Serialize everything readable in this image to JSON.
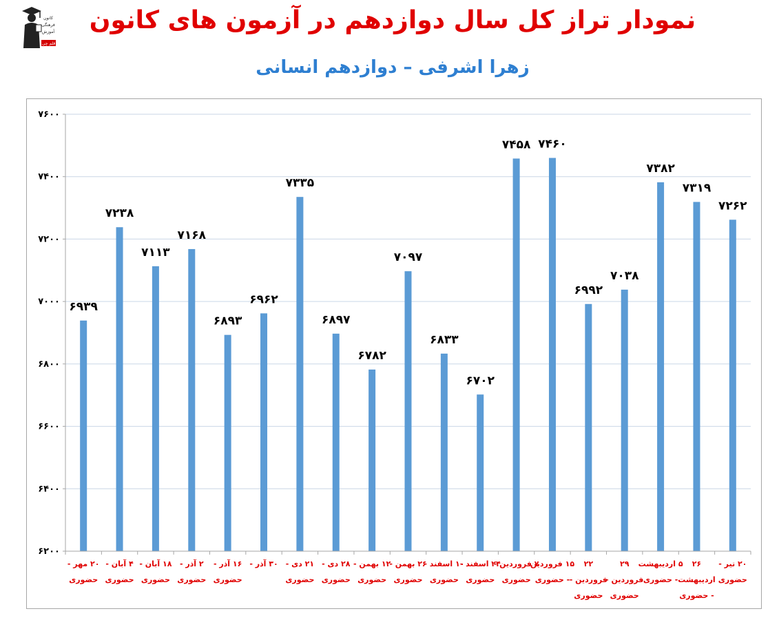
{
  "header": {
    "title": "نمودار تراز کل سال دوازدهم در آزمون های کانون",
    "subtitle": "زهرا اشرفی – دوازدهم انسانی",
    "logo_icon": "kanoon-graduate-logo-icon",
    "logo_lines": [
      "کانون",
      "فرهنگی",
      "آموزش",
      "قلم چی"
    ]
  },
  "colors": {
    "bar": "#5b9bd5",
    "grid": "#c9d6e6",
    "axis": "#a6a6a6",
    "title": "#e00000",
    "subtitle": "#2e7fd1",
    "category_label": "#e00000",
    "value_label": "#000000"
  },
  "chart_data": {
    "type": "bar",
    "title": "",
    "xlabel": "",
    "ylabel": "",
    "ylim": [
      6200,
      7600
    ],
    "yticks": [
      6200,
      6400,
      6600,
      6800,
      7000,
      7200,
      7400,
      7600
    ],
    "ytick_labels": [
      "۶۲۰۰",
      "۶۴۰۰",
      "۶۶۰۰",
      "۶۸۰۰",
      "۷۰۰۰",
      "۷۲۰۰",
      "۷۴۰۰",
      "۷۶۰۰"
    ],
    "grid": true,
    "legend": "none",
    "categories": [
      [
        "۲۰ مهر -",
        "حضوری"
      ],
      [
        "۴ آبان -",
        "حضوری"
      ],
      [
        "۱۸ آبان -",
        "حضوری"
      ],
      [
        "۲ آذر -",
        "حضوری"
      ],
      [
        "۱۶ آذر -",
        "حضوری"
      ],
      [
        "۳۰ آذر -",
        ""
      ],
      [
        "۲۱ دی -",
        "حضوری"
      ],
      [
        "۲۸ دی -",
        "حضوری"
      ],
      [
        "۱۲ بهمن -",
        "حضوری"
      ],
      [
        "۲۶ بهمن -",
        "حضوری"
      ],
      [
        "۱۰ اسفند -",
        "حضوری"
      ],
      [
        "۲۴ اسفند -",
        "حضوری"
      ],
      [
        "۷ فروردین -",
        "حضوری"
      ],
      [
        "۱۵ فروردین",
        "- حضوری"
      ],
      [
        "۲۲",
        "فروردین -",
        "حضوری"
      ],
      [
        "۲۹",
        "فروردین -",
        "حضوری"
      ],
      [
        "۵ اردیبهشت",
        "- حضوری"
      ],
      [
        "۲۶",
        "اردیبهشت",
        "- حضوری"
      ],
      [
        "۲۰ تیر -",
        "حضوری"
      ]
    ],
    "values": [
      6939,
      7238,
      7113,
      7168,
      6893,
      6962,
      7335,
      6897,
      6782,
      7097,
      6833,
      6702,
      7458,
      7460,
      6992,
      7038,
      7382,
      7319,
      7262
    ],
    "value_labels": [
      "۶۹۳۹",
      "۷۲۳۸",
      "۷۱۱۳",
      "۷۱۶۸",
      "۶۸۹۳",
      "۶۹۶۲",
      "۷۳۳۵",
      "۶۸۹۷",
      "۶۷۸۲",
      "۷۰۹۷",
      "۶۸۳۳",
      "۶۷۰۲",
      "۷۴۵۸",
      "۷۴۶۰",
      "۶۹۹۲",
      "۷۰۳۸",
      "۷۳۸۲",
      "۷۳۱۹",
      "۷۲۶۲"
    ]
  }
}
